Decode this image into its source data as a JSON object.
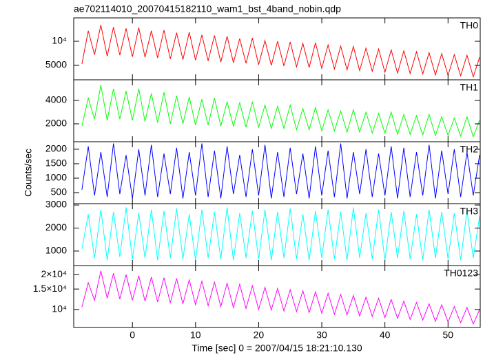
{
  "chart_data": {
    "type": "line",
    "title": "ae702114010_20070415182110_wam1_bst_4band_nobin.qdp",
    "xlabel": "Time [sec] 0 = 2007/04/15 18:21:10.130",
    "ylabel": "Counts/sec",
    "xlim": [
      -9.3,
      55.1
    ],
    "xticks": [
      0,
      10,
      20,
      30,
      40,
      50
    ],
    "x": [
      -8,
      -7,
      -6,
      -5,
      -4,
      -3,
      -2,
      -1,
      0,
      1,
      2,
      3,
      4,
      5,
      6,
      7,
      8,
      9,
      10,
      11,
      12,
      13,
      14,
      15,
      16,
      17,
      18,
      19,
      20,
      21,
      22,
      23,
      24,
      25,
      26,
      27,
      28,
      29,
      30,
      31,
      32,
      33,
      34,
      35,
      36,
      37,
      38,
      39,
      40,
      41,
      42,
      43,
      44,
      45,
      46,
      47,
      48,
      49,
      50,
      51,
      52,
      53,
      54,
      55
    ],
    "series": [
      {
        "name": "TH0",
        "color": "#ff0000",
        "log_scale": true,
        "ylim": [
          3300,
          19600
        ],
        "yticks": [
          {
            "value": 5000,
            "label": "5000"
          },
          {
            "value": 10000,
            "label": "10⁴"
          }
        ],
        "values": [
          5200,
          13500,
          6800,
          16000,
          6500,
          15000,
          6700,
          14500,
          6400,
          14800,
          6300,
          13500,
          6200,
          13800,
          6000,
          12800,
          5900,
          13000,
          5800,
          12000,
          5700,
          11800,
          5500,
          11500,
          5400,
          10800,
          5300,
          11000,
          5100,
          10200,
          5000,
          10000,
          4900,
          9800,
          4800,
          9400,
          4700,
          9600,
          4600,
          9000,
          4500,
          8700,
          4400,
          8600,
          4300,
          8200,
          4200,
          8000,
          4100,
          7800,
          4000,
          7600,
          3950,
          7400,
          3900,
          7200,
          3800,
          7000,
          3750,
          6800,
          3700,
          6700,
          3600,
          6300
        ]
      },
      {
        "name": "TH1",
        "color": "#00ff00",
        "log_scale": false,
        "ylim": [
          470,
          5765
        ],
        "yticks": [
          2000,
          4000
        ],
        "values": [
          1800,
          4200,
          2400,
          5300,
          2300,
          5000,
          2400,
          4800,
          2300,
          5000,
          2200,
          4600,
          2100,
          4700,
          2000,
          4400,
          2000,
          4300,
          1900,
          4100,
          1900,
          4200,
          1800,
          3900,
          1800,
          3800,
          1700,
          3900,
          1700,
          3600,
          1600,
          3500,
          1600,
          3600,
          1500,
          3300,
          1500,
          3400,
          1400,
          3200,
          1400,
          3100,
          1300,
          3200,
          1300,
          3000,
          1200,
          2900,
          1200,
          3000,
          1100,
          2800,
          1100,
          2700,
          1050,
          2800,
          1000,
          2600,
          1000,
          2500,
          950,
          2600,
          900,
          2300
        ]
      },
      {
        "name": "TH2",
        "color": "#0000ff",
        "log_scale": false,
        "ylim": [
          120,
          2260
        ],
        "yticks": [
          500,
          1000,
          1500,
          2000
        ],
        "values": [
          600,
          2100,
          400,
          1900,
          350,
          2200,
          450,
          1800,
          300,
          2000,
          400,
          2150,
          350,
          1850,
          450,
          2050,
          300,
          1900,
          400,
          2200,
          350,
          1950,
          300,
          2100,
          450,
          1800,
          350,
          2000,
          400,
          2150,
          300,
          1900,
          350,
          2050,
          450,
          1850,
          300,
          2100,
          400,
          1950,
          350,
          2200,
          300,
          1900,
          450,
          2000,
          350,
          1850,
          400,
          2100,
          300,
          2050,
          350,
          1900,
          400,
          2150,
          300,
          1950,
          450,
          2000,
          350,
          1900,
          400,
          1800
        ]
      },
      {
        "name": "TH3",
        "color": "#00ffff",
        "log_scale": false,
        "ylim": [
          370,
          3060
        ],
        "yticks": [
          1000,
          2000,
          3000
        ],
        "values": [
          1100,
          2600,
          700,
          2800,
          600,
          2700,
          750,
          2900,
          650,
          2650,
          700,
          2800,
          600,
          2750,
          700,
          2850,
          650,
          2600,
          600,
          2800,
          700,
          2700,
          650,
          2900,
          600,
          2650,
          700,
          2750,
          650,
          2800,
          600,
          2700,
          700,
          2850,
          650,
          2600,
          600,
          2750,
          700,
          2800,
          650,
          2700,
          600,
          2900,
          700,
          2650,
          650,
          2800,
          600,
          2700,
          700,
          2750,
          650,
          2600,
          600,
          2800,
          700,
          2700,
          650,
          2650,
          600,
          2750,
          700,
          2500
        ]
      },
      {
        "name": "TH0123",
        "color": "#ff00ff",
        "log_scale": true,
        "ylim": [
          7000,
          23900
        ],
        "yticks": [
          {
            "value": 10000,
            "label": "10⁴"
          },
          {
            "value": 15000,
            "label": "1.5×10⁴"
          },
          {
            "value": 20000,
            "label": "2×10⁴"
          }
        ],
        "values": [
          10500,
          17000,
          12000,
          21500,
          12500,
          20500,
          12300,
          20000,
          12000,
          19500,
          11800,
          19000,
          11600,
          18800,
          11400,
          18500,
          11200,
          18000,
          11000,
          17500,
          10800,
          17200,
          10600,
          16800,
          10400,
          16500,
          10200,
          16000,
          10000,
          15500,
          9900,
          15200,
          9700,
          14800,
          9600,
          14500,
          9400,
          14200,
          9300,
          13800,
          9100,
          13500,
          9000,
          13200,
          8800,
          12800,
          8700,
          12500,
          8500,
          12200,
          8400,
          11800,
          8200,
          11500,
          8100,
          11200,
          7900,
          11000,
          7800,
          10600,
          7700,
          10400,
          7500,
          10000
        ]
      }
    ]
  }
}
